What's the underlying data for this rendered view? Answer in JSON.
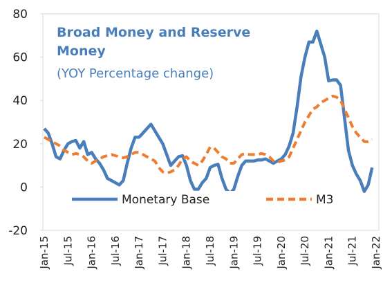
{
  "chart_data": {
    "type": "line",
    "title": "Broad Money and Reserve Money",
    "subtitle": "(YOY Percentage change)",
    "categories": [
      "Jan-15",
      null,
      null,
      null,
      null,
      null,
      "Jul-15",
      null,
      null,
      null,
      null,
      null,
      "Jan-16",
      null,
      null,
      null,
      null,
      null,
      "Jul-16",
      null,
      null,
      null,
      null,
      null,
      "Jan-17",
      null,
      null,
      null,
      null,
      null,
      "Jul-17",
      null,
      null,
      null,
      null,
      null,
      "Jan-18",
      null,
      null,
      null,
      null,
      null,
      "Jul-18",
      null,
      null,
      null,
      null,
      null,
      "Jan-19",
      null,
      null,
      null,
      null,
      null,
      "Jul-19",
      null,
      null,
      null,
      null,
      null,
      "Jan-20",
      null,
      null,
      null,
      null,
      null,
      "Jul-20",
      null,
      null,
      null,
      null,
      null,
      "Jan-21",
      null,
      null,
      null,
      null,
      null,
      "Jul-21",
      null,
      null,
      null,
      null,
      null,
      "Jan-22"
    ],
    "series": [
      {
        "name": "Monetary Base",
        "color": "#4a7ebb",
        "dashed": false,
        "values": [
          27,
          25,
          20,
          14,
          13,
          17,
          20,
          21,
          21.5,
          18,
          21,
          15,
          16,
          13,
          11,
          8,
          4,
          3,
          2,
          1,
          3,
          11,
          18,
          23,
          23,
          25,
          27,
          29,
          26,
          23,
          20,
          15,
          10,
          12,
          14,
          14.5,
          10,
          3,
          -1,
          -1,
          2,
          4,
          9,
          10,
          10.5,
          4,
          -1,
          -3,
          -1,
          5,
          10,
          12,
          12,
          12,
          12.5,
          12.5,
          13,
          12,
          11,
          12,
          13,
          15,
          19,
          25,
          37,
          51,
          60,
          67,
          67,
          72,
          66,
          60,
          49,
          49.5,
          49.5,
          47,
          32,
          17,
          10,
          6,
          3,
          -2,
          1,
          9,
          null
        ]
      },
      {
        "name": "M3",
        "color": "#ed7d31",
        "dashed": true,
        "values": [
          23,
          22,
          21,
          20,
          19,
          17,
          16,
          15,
          15.5,
          15,
          14,
          12,
          11,
          12,
          13,
          14,
          14.5,
          15,
          14.5,
          14,
          13.5,
          14,
          15,
          16,
          16,
          15,
          14,
          13,
          12,
          9,
          7,
          6.5,
          7,
          8,
          10,
          13,
          14,
          12,
          11,
          10,
          12,
          15,
          18.5,
          18,
          16,
          14,
          13,
          11,
          11,
          13,
          15,
          15.5,
          15,
          15,
          15,
          15.5,
          15,
          14,
          12,
          11.5,
          12,
          12.5,
          14,
          18,
          22,
          26,
          30,
          33,
          36,
          37,
          39,
          40,
          41,
          42,
          41.5,
          40,
          36,
          32,
          28,
          25,
          23,
          21,
          21,
          22,
          null
        ]
      }
    ],
    "ylim": [
      -20,
      80
    ],
    "yticks": [
      -20,
      0,
      20,
      40,
      60,
      80
    ]
  }
}
